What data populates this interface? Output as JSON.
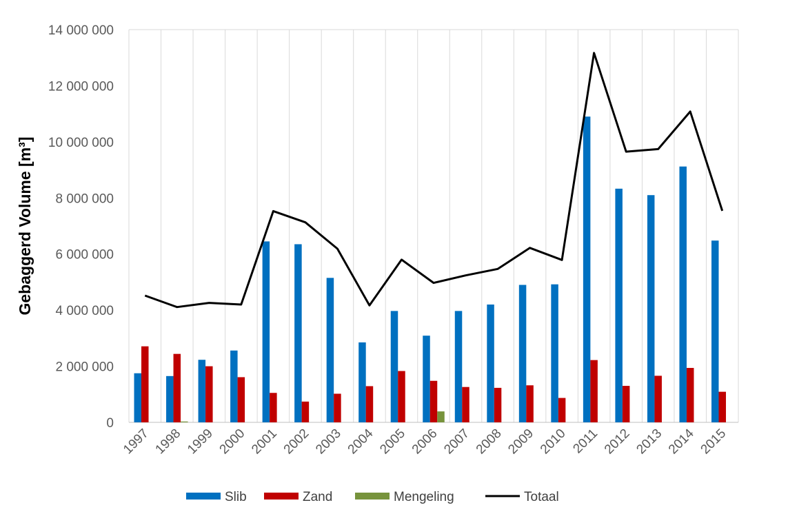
{
  "chart_data": {
    "type": "bar",
    "title": "",
    "xlabel": "",
    "ylabel": "Gebaggerd Volume [m³]",
    "ylim": [
      0,
      14000000
    ],
    "yticks": [
      0,
      2000000,
      4000000,
      6000000,
      8000000,
      10000000,
      12000000,
      14000000
    ],
    "ytick_labels": [
      "0",
      "2 000 000",
      "4 000 000",
      "6 000 000",
      "8 000 000",
      "10 000 000",
      "12 000 000",
      "14 000 000"
    ],
    "grid": "vertical",
    "legend_position": "bottom",
    "categories": [
      "1997",
      "1998",
      "1999",
      "2000",
      "2001",
      "2002",
      "2003",
      "2004",
      "2005",
      "2006",
      "2007",
      "2008",
      "2009",
      "2010",
      "2011",
      "2012",
      "2013",
      "2014",
      "2015"
    ],
    "series": [
      {
        "name": "Slib",
        "type": "bar",
        "color": "#0070C0",
        "values": [
          1750000,
          1650000,
          2230000,
          2560000,
          6450000,
          6350000,
          5150000,
          2850000,
          3970000,
          3090000,
          3970000,
          4200000,
          4900000,
          4920000,
          10900000,
          8330000,
          8100000,
          9120000,
          6480000
        ]
      },
      {
        "name": "Zand",
        "type": "bar",
        "color": "#C00000",
        "values": [
          2710000,
          2440000,
          2000000,
          1610000,
          1050000,
          740000,
          1020000,
          1290000,
          1830000,
          1480000,
          1260000,
          1230000,
          1320000,
          870000,
          2220000,
          1300000,
          1660000,
          1940000,
          1090000
        ]
      },
      {
        "name": "Mengeling",
        "type": "bar",
        "color": "#77933C",
        "values": [
          0,
          30000,
          0,
          0,
          0,
          0,
          0,
          0,
          0,
          390000,
          0,
          0,
          0,
          0,
          0,
          0,
          0,
          0,
          0
        ]
      },
      {
        "name": "Totaal",
        "type": "line",
        "color": "#000000",
        "values": [
          4520000,
          4110000,
          4260000,
          4200000,
          7530000,
          7130000,
          6190000,
          4170000,
          5800000,
          4970000,
          5240000,
          5470000,
          6220000,
          5790000,
          13170000,
          9650000,
          9740000,
          11080000,
          7540000
        ]
      }
    ]
  }
}
